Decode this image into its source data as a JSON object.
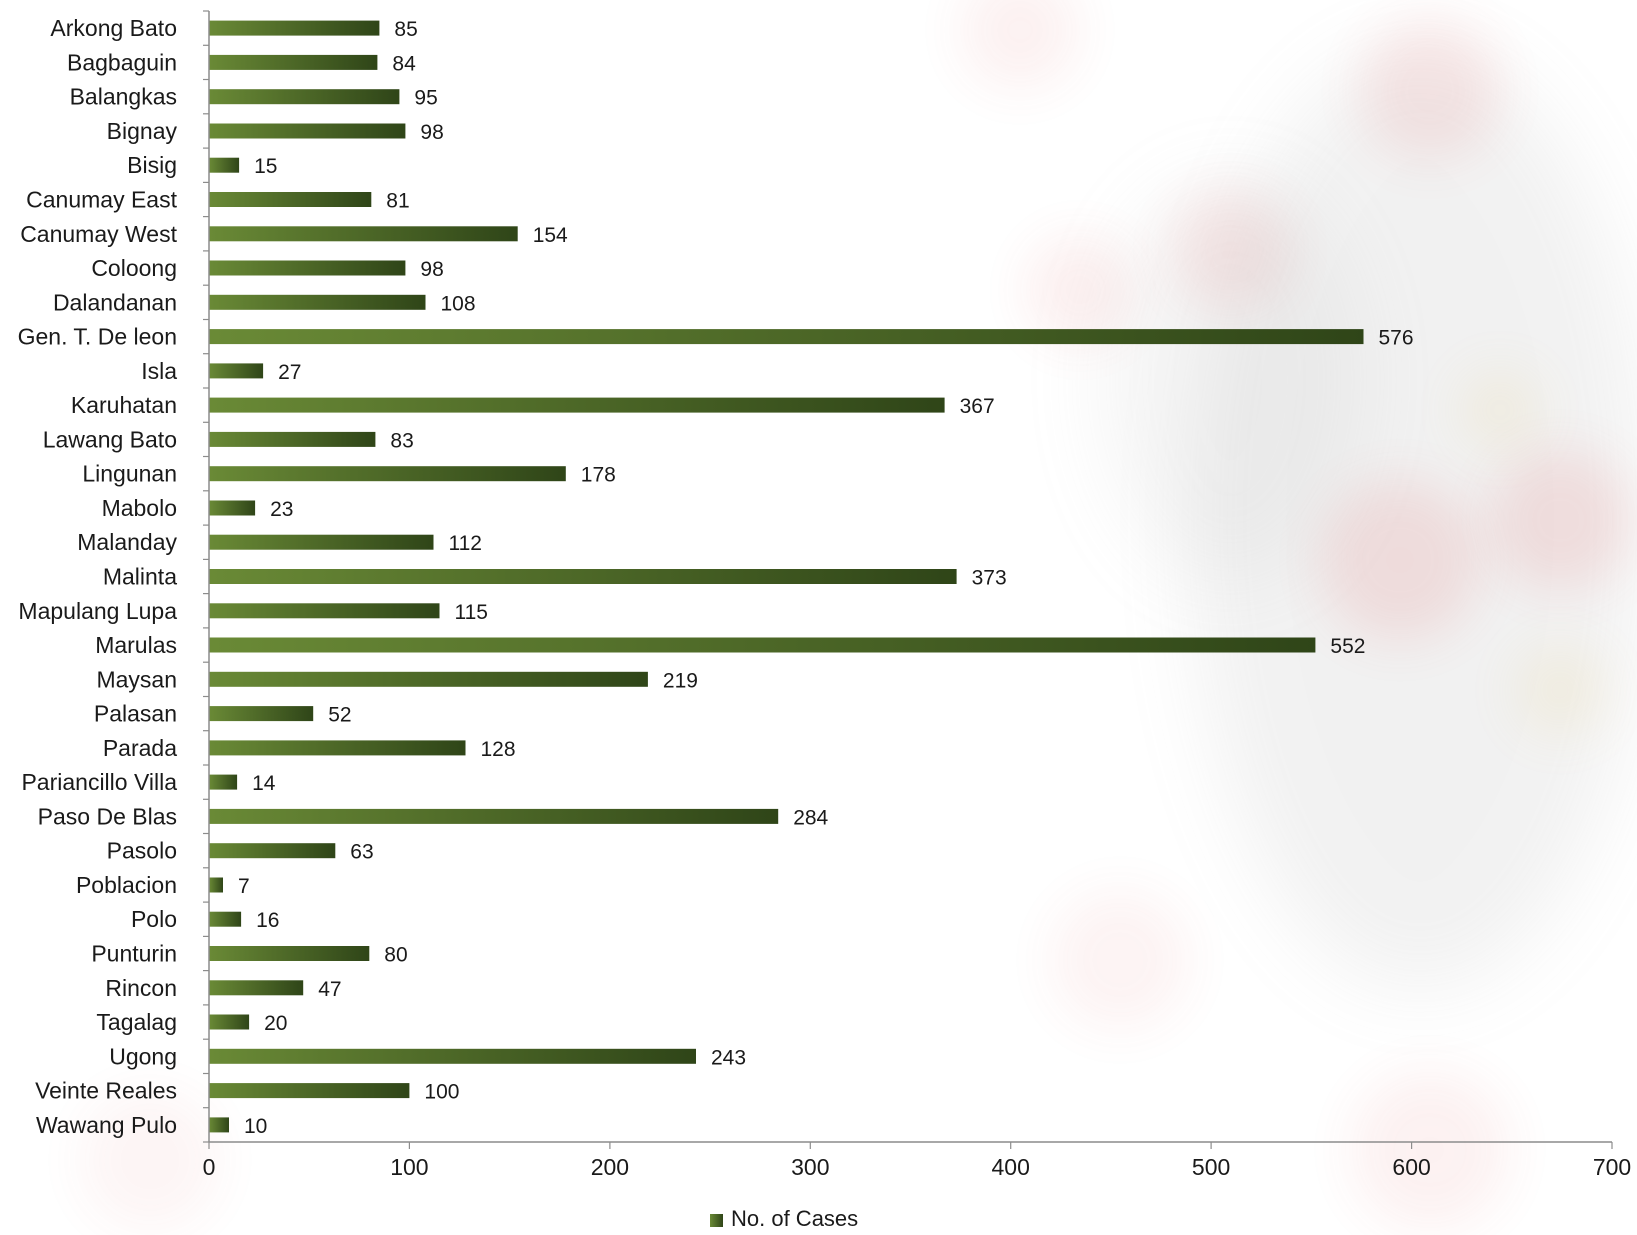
{
  "chart_data": {
    "type": "bar",
    "orientation": "horizontal",
    "categories": [
      "Arkong Bato",
      "Bagbaguin",
      "Balangkas",
      "Bignay",
      "Bisig",
      "Canumay East",
      "Canumay West",
      "Coloong",
      "Dalandanan",
      "Gen. T. De leon",
      "Isla",
      "Karuhatan",
      "Lawang Bato",
      "Lingunan",
      "Mabolo",
      "Malanday",
      "Malinta",
      "Mapulang Lupa",
      "Marulas",
      "Maysan",
      "Palasan",
      "Parada",
      "Pariancillo Villa",
      "Paso De Blas",
      "Pasolo",
      "Poblacion",
      "Polo",
      "Punturin",
      "Rincon",
      "Tagalag",
      "Ugong",
      "Veinte Reales",
      "Wawang Pulo"
    ],
    "series": [
      {
        "name": "No. of Cases",
        "values": [
          85,
          84,
          95,
          98,
          15,
          81,
          154,
          98,
          108,
          576,
          27,
          367,
          83,
          178,
          23,
          112,
          373,
          115,
          552,
          219,
          52,
          128,
          14,
          284,
          63,
          7,
          16,
          80,
          47,
          20,
          243,
          100,
          10
        ]
      }
    ],
    "xlim": [
      0,
      700
    ],
    "xticks": [
      0,
      100,
      200,
      300,
      400,
      500,
      600,
      700
    ],
    "title": "",
    "xlabel": "",
    "ylabel": "",
    "legend": "bottom-center",
    "grid": false,
    "data_labels": true
  },
  "colors": {
    "bar_light": "#6a8a36",
    "bar_dark": "#2f4518",
    "axis": "#8c8c8c",
    "text": "#1a1a1a",
    "background_accent": "#d94545"
  }
}
